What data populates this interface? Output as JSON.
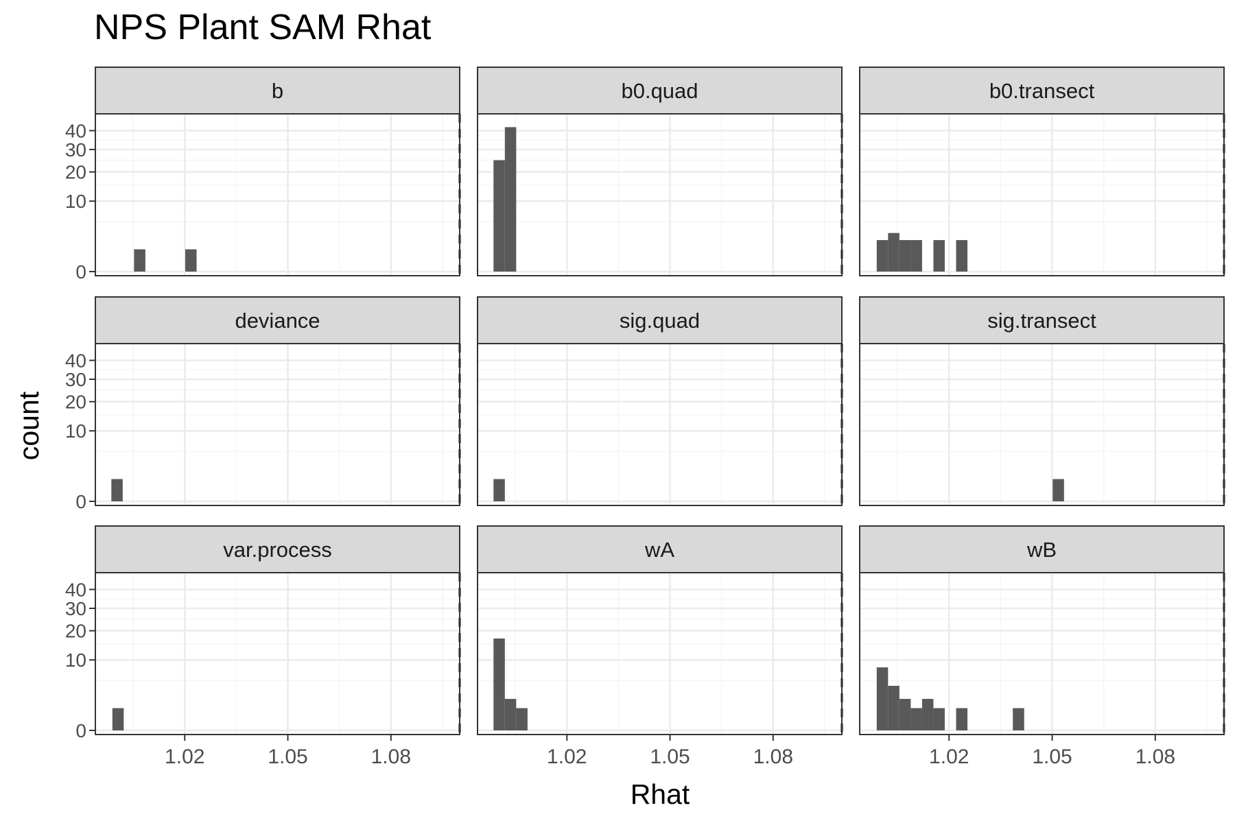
{
  "chart_data": {
    "type": "bar",
    "title": "NPS Plant SAM Rhat",
    "xlabel": "Rhat",
    "ylabel": "count",
    "x_ticks": [
      1.02,
      1.05,
      1.08
    ],
    "x_tick_labels": [
      "1.02",
      "1.05",
      "1.08"
    ],
    "xlim": [
      0.994,
      1.1
    ],
    "y_scale": "sqrt",
    "y_ticks": [
      0,
      10,
      20,
      30,
      40
    ],
    "y_tick_labels": [
      "0",
      "10",
      "20",
      "30",
      "40"
    ],
    "ylim": [
      0,
      45
    ],
    "bin_width": 0.0033,
    "reference_line": {
      "x": 1.1,
      "style": "dashed"
    },
    "grid": true,
    "facets": [
      {
        "name": "b",
        "bins": [
          {
            "x": 1.0069,
            "count": 1
          },
          {
            "x": 1.0218,
            "count": 1
          }
        ]
      },
      {
        "name": "b0.quad",
        "bins": [
          {
            "x": 1.0003,
            "count": 25
          },
          {
            "x": 1.0036,
            "count": 42
          }
        ]
      },
      {
        "name": "b0.transect",
        "bins": [
          {
            "x": 1.0006,
            "count": 2
          },
          {
            "x": 1.0039,
            "count": 3
          },
          {
            "x": 1.0072,
            "count": 2
          },
          {
            "x": 1.0105,
            "count": 2
          },
          {
            "x": 1.0171,
            "count": 2
          },
          {
            "x": 1.0237,
            "count": 2
          }
        ]
      },
      {
        "name": "deviance",
        "bins": [
          {
            "x": 1.0003,
            "count": 1
          }
        ]
      },
      {
        "name": "sig.quad",
        "bins": [
          {
            "x": 1.0003,
            "count": 1
          }
        ]
      },
      {
        "name": "sig.transect",
        "bins": [
          {
            "x": 1.0518,
            "count": 1
          }
        ]
      },
      {
        "name": "var.process",
        "bins": [
          {
            "x": 1.0006,
            "count": 1
          }
        ]
      },
      {
        "name": "wA",
        "bins": [
          {
            "x": 1.0003,
            "count": 17
          },
          {
            "x": 1.0036,
            "count": 2
          },
          {
            "x": 1.0069,
            "count": 1
          }
        ]
      },
      {
        "name": "wB",
        "bins": [
          {
            "x": 1.0006,
            "count": 8
          },
          {
            "x": 1.0039,
            "count": 4
          },
          {
            "x": 1.0072,
            "count": 2
          },
          {
            "x": 1.0105,
            "count": 1
          },
          {
            "x": 1.0138,
            "count": 2
          },
          {
            "x": 1.0171,
            "count": 1
          },
          {
            "x": 1.0237,
            "count": 1
          },
          {
            "x": 1.0402,
            "count": 1
          }
        ]
      }
    ]
  },
  "colors": {
    "bar_fill": "#595959",
    "strip_fill": "#d9d9d9",
    "panel_border": "#333333",
    "grid_major": "#ebebeb",
    "grid_minor": "#f5f5f5",
    "axis_text": "#4d4d4d",
    "strip_text": "#1a1a1a",
    "reference_line": "#000000"
  }
}
